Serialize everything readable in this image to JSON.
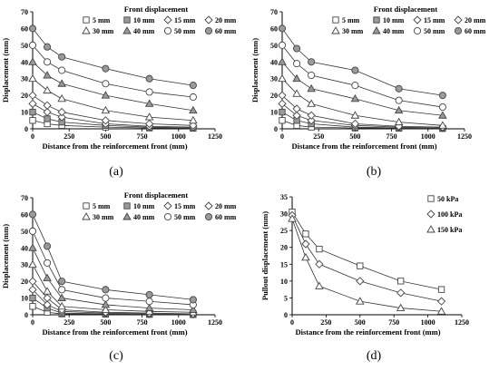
{
  "captions": [
    "(a)",
    "(b)",
    "(c)",
    "(d)"
  ],
  "colors": {
    "line": "#333333",
    "marker_stroke": "#444444",
    "filled": "#9a9a9a",
    "hollow": "#ffffff"
  },
  "chart_data": [
    {
      "type": "line",
      "panel": "a",
      "ylabel": "Displacement (mm)",
      "xlabel": "Distance from the reinforcement front (mm)",
      "xlim": [
        0,
        1250
      ],
      "xticks": [
        0,
        250,
        500,
        750,
        1000,
        1250
      ],
      "ylim": [
        0,
        70
      ],
      "yticks": [
        0,
        10,
        20,
        30,
        40,
        50,
        60,
        70
      ],
      "legend_title": "Front displacement",
      "series": [
        {
          "name": "5 mm",
          "marker": "square",
          "fill": "hollow",
          "x": [
            0,
            100,
            200,
            500,
            800,
            1100
          ],
          "y": [
            5,
            3,
            2,
            1,
            0.5,
            0.3
          ]
        },
        {
          "name": "10 mm",
          "marker": "square",
          "fill": "filled",
          "x": [
            0,
            100,
            200,
            500,
            800,
            1100
          ],
          "y": [
            10,
            6,
            4,
            2,
            1,
            0.5
          ]
        },
        {
          "name": "15 mm",
          "marker": "diamond",
          "fill": "hollow",
          "x": [
            0,
            100,
            200,
            500,
            800,
            1100
          ],
          "y": [
            15,
            10,
            7,
            3,
            1.5,
            1
          ]
        },
        {
          "name": "20 mm",
          "marker": "diamond",
          "fill": "hollow",
          "x": [
            0,
            100,
            200,
            500,
            800,
            1100
          ],
          "y": [
            20,
            14,
            10,
            5,
            3,
            2
          ]
        },
        {
          "name": "30 mm",
          "marker": "triangle",
          "fill": "hollow",
          "x": [
            0,
            100,
            200,
            500,
            800,
            1100
          ],
          "y": [
            30,
            23,
            18,
            11,
            7,
            5
          ]
        },
        {
          "name": "40 mm",
          "marker": "triangle",
          "fill": "filled",
          "x": [
            0,
            100,
            200,
            500,
            800,
            1100
          ],
          "y": [
            40,
            32,
            27,
            20,
            15,
            11
          ]
        },
        {
          "name": "50 mm",
          "marker": "circle",
          "fill": "hollow",
          "x": [
            0,
            100,
            200,
            500,
            800,
            1100
          ],
          "y": [
            50,
            40,
            35,
            27,
            22,
            19
          ]
        },
        {
          "name": "60 mm",
          "marker": "circle",
          "fill": "filled",
          "x": [
            0,
            100,
            200,
            500,
            800,
            1100
          ],
          "y": [
            60,
            49,
            43,
            36,
            30,
            26
          ]
        }
      ]
    },
    {
      "type": "line",
      "panel": "b",
      "ylabel": "Displacement (mm)",
      "xlabel": "Distance from the reinforcement front (mm)",
      "xlim": [
        0,
        1250
      ],
      "xticks": [
        0,
        250,
        500,
        750,
        1000,
        1250
      ],
      "ylim": [
        0,
        70
      ],
      "yticks": [
        0,
        10,
        20,
        30,
        40,
        50,
        60,
        70
      ],
      "legend_title": "Front displacement",
      "series": [
        {
          "name": "5 mm",
          "marker": "square",
          "fill": "hollow",
          "x": [
            0,
            100,
            200,
            500,
            800,
            1100
          ],
          "y": [
            5,
            2,
            1,
            0.5,
            0.3,
            0.2
          ]
        },
        {
          "name": "10 mm",
          "marker": "square",
          "fill": "filled",
          "x": [
            0,
            100,
            200,
            500,
            800,
            1100
          ],
          "y": [
            10,
            5,
            3,
            1,
            0.5,
            0.3
          ]
        },
        {
          "name": "15 mm",
          "marker": "diamond",
          "fill": "hollow",
          "x": [
            0,
            100,
            200,
            500,
            800,
            1100
          ],
          "y": [
            15,
            8,
            5,
            2,
            1,
            0.5
          ]
        },
        {
          "name": "20 mm",
          "marker": "diamond",
          "fill": "hollow",
          "x": [
            0,
            100,
            200,
            500,
            800,
            1100
          ],
          "y": [
            20,
            12,
            8,
            3,
            1.5,
            1
          ]
        },
        {
          "name": "30 mm",
          "marker": "triangle",
          "fill": "hollow",
          "x": [
            0,
            100,
            200,
            500,
            800,
            1100
          ],
          "y": [
            30,
            21,
            15,
            8,
            4,
            2
          ]
        },
        {
          "name": "40 mm",
          "marker": "triangle",
          "fill": "filled",
          "x": [
            0,
            100,
            200,
            500,
            800,
            1100
          ],
          "y": [
            40,
            30,
            24,
            18,
            11,
            8
          ]
        },
        {
          "name": "50 mm",
          "marker": "circle",
          "fill": "hollow",
          "x": [
            0,
            100,
            200,
            500,
            800,
            1100
          ],
          "y": [
            50,
            39,
            32,
            26,
            17,
            13
          ]
        },
        {
          "name": "60 mm",
          "marker": "circle",
          "fill": "filled",
          "x": [
            0,
            100,
            200,
            500,
            800,
            1100
          ],
          "y": [
            60,
            48,
            40,
            35,
            24,
            20
          ]
        }
      ]
    },
    {
      "type": "line",
      "panel": "c",
      "ylabel": "Displacement (mm)",
      "xlabel": "Distance from the reinforcement front (mm)",
      "xlim": [
        0,
        1250
      ],
      "xticks": [
        0,
        250,
        500,
        750,
        1000,
        1250
      ],
      "ylim": [
        0,
        70
      ],
      "yticks": [
        0,
        10,
        20,
        30,
        40,
        50,
        60,
        70
      ],
      "legend_title": "Front displacement",
      "series": [
        {
          "name": "5 mm",
          "marker": "square",
          "fill": "hollow",
          "x": [
            0,
            100,
            200,
            500,
            800,
            1100
          ],
          "y": [
            5,
            1.5,
            0.5,
            0.3,
            0.2,
            0.1
          ]
        },
        {
          "name": "10 mm",
          "marker": "square",
          "fill": "filled",
          "x": [
            0,
            100,
            200,
            500,
            800,
            1100
          ],
          "y": [
            10,
            4,
            1,
            0.5,
            0.3,
            0.2
          ]
        },
        {
          "name": "15 mm",
          "marker": "diamond",
          "fill": "hollow",
          "x": [
            0,
            100,
            200,
            500,
            800,
            1100
          ],
          "y": [
            15,
            6,
            2,
            1,
            0.5,
            0.3
          ]
        },
        {
          "name": "20 mm",
          "marker": "diamond",
          "fill": "hollow",
          "x": [
            0,
            100,
            200,
            500,
            800,
            1100
          ],
          "y": [
            20,
            10,
            3,
            1.5,
            1,
            0.5
          ]
        },
        {
          "name": "30 mm",
          "marker": "triangle",
          "fill": "hollow",
          "x": [
            0,
            100,
            200,
            500,
            800,
            1100
          ],
          "y": [
            30,
            14,
            5,
            3,
            2,
            1.5
          ]
        },
        {
          "name": "40 mm",
          "marker": "triangle",
          "fill": "filled",
          "x": [
            0,
            100,
            200,
            500,
            800,
            1100
          ],
          "y": [
            40,
            22,
            10,
            6,
            4,
            3
          ]
        },
        {
          "name": "50 mm",
          "marker": "circle",
          "fill": "hollow",
          "x": [
            0,
            100,
            200,
            500,
            800,
            1100
          ],
          "y": [
            50,
            31,
            15,
            10,
            8,
            6
          ]
        },
        {
          "name": "60 mm",
          "marker": "circle",
          "fill": "filled",
          "x": [
            0,
            100,
            200,
            500,
            800,
            1100
          ],
          "y": [
            60,
            41,
            20,
            15,
            12,
            9
          ]
        }
      ]
    },
    {
      "type": "line",
      "panel": "d",
      "ylabel": "Pullout displacement (mm)",
      "xlabel": "Distance from the reinforcement front (mm)",
      "xlim": [
        0,
        1250
      ],
      "xticks": [
        0,
        250,
        500,
        750,
        1000,
        1250
      ],
      "ylim": [
        0,
        35
      ],
      "yticks": [
        0,
        5,
        10,
        15,
        20,
        25,
        30,
        35
      ],
      "legend_title": "",
      "series": [
        {
          "name": "50 kPa",
          "marker": "square",
          "fill": "hollow",
          "x": [
            0,
            100,
            200,
            500,
            800,
            1100
          ],
          "y": [
            30.5,
            24,
            19.5,
            14.5,
            10,
            7.5
          ]
        },
        {
          "name": "100 kPa",
          "marker": "diamond",
          "fill": "hollow",
          "x": [
            0,
            100,
            200,
            500,
            800,
            1100
          ],
          "y": [
            29.5,
            21,
            15,
            10,
            6.5,
            4
          ]
        },
        {
          "name": "150 kPa",
          "marker": "triangle",
          "fill": "hollow",
          "x": [
            0,
            100,
            200,
            500,
            800,
            1100
          ],
          "y": [
            28.5,
            17,
            8.5,
            4,
            2,
            1
          ]
        }
      ]
    }
  ]
}
